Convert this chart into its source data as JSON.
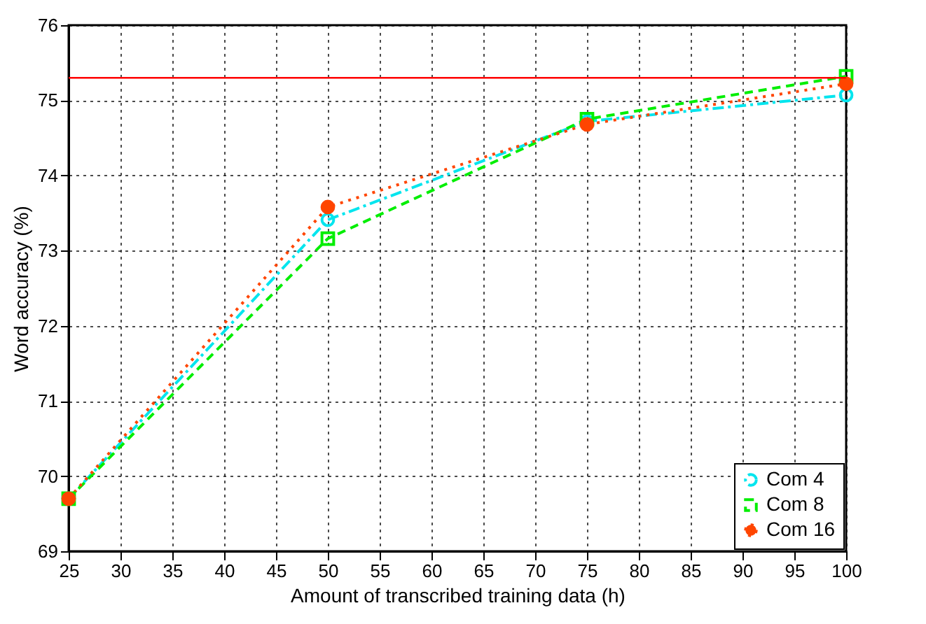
{
  "chart_data": {
    "type": "line",
    "xlabel": "Amount of transcribed training data (h)",
    "ylabel": "Word accuracy (%)",
    "x": [
      25,
      50,
      75,
      100
    ],
    "series": [
      {
        "name": "Com 4",
        "color": "#00e5ee",
        "values": [
          69.7,
          73.41,
          74.72,
          75.07
        ],
        "marker": "circle",
        "line_style": "dashdot"
      },
      {
        "name": "Com 8",
        "color": "#00ee00",
        "values": [
          69.7,
          73.16,
          74.75,
          75.32
        ],
        "marker": "square",
        "line_style": "dashed"
      },
      {
        "name": "Com 16",
        "color": "#ff4500",
        "values": [
          69.7,
          73.58,
          74.68,
          75.22
        ],
        "marker": "circle",
        "line_style": "dotted"
      }
    ],
    "xlim": [
      25,
      100
    ],
    "xticks": [
      25,
      30,
      35,
      40,
      45,
      50,
      55,
      60,
      65,
      70,
      75,
      80,
      85,
      90,
      95,
      100
    ],
    "ylim": [
      69,
      76
    ],
    "yticks": [
      69,
      70,
      71,
      72,
      73,
      74,
      75,
      76
    ],
    "ref_lines": [
      {
        "axis": "y",
        "value": 75.3,
        "color": "#ff0000"
      }
    ],
    "grid": true,
    "legend": "bottom right"
  }
}
